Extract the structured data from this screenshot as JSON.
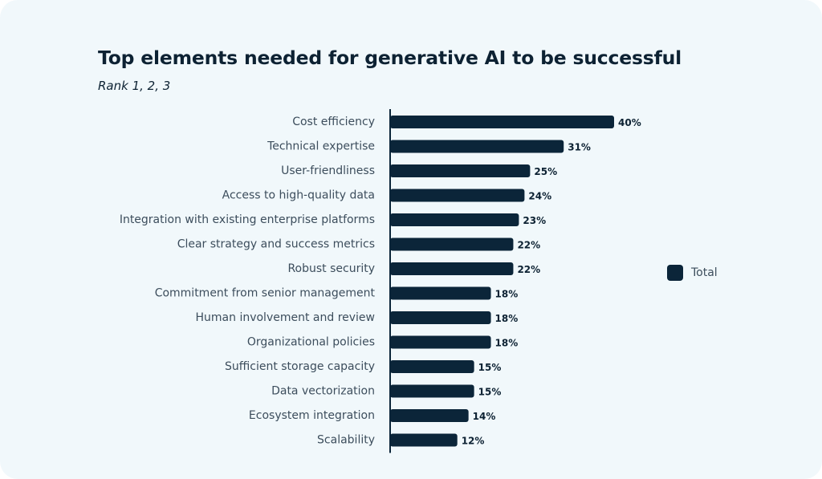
{
  "chart_data": {
    "type": "bar",
    "orientation": "horizontal",
    "title": "Top elements needed for generative AI to be successful",
    "subtitle": "Rank 1, 2, 3",
    "categories": [
      "Cost efficiency",
      "Technical expertise",
      "User-friendliness",
      "Access to high-quality data",
      "Integration with existing enterprise platforms",
      "Clear strategy and success metrics",
      "Robust security",
      "Commitment from senior management",
      "Human involvement and review",
      "Organizational policies",
      "Sufficient storage capacity",
      "Data vectorization",
      "Ecosystem integration",
      "Scalability"
    ],
    "series": [
      {
        "name": "Total",
        "values": [
          40,
          31,
          25,
          24,
          23,
          22,
          22,
          18,
          18,
          18,
          15,
          15,
          14,
          12
        ],
        "labels": [
          "40%",
          "31%",
          "25%",
          "24%",
          "23%",
          "22%",
          "22%",
          "18%",
          "18%",
          "18%",
          "15%",
          "15%",
          "14%",
          "12%"
        ]
      }
    ],
    "value_unit": "%",
    "xlim": [
      0,
      40
    ],
    "grid": false,
    "legend_position": "right",
    "colors": {
      "bar": "#0b2539",
      "background": "#f1f8fb",
      "axis": "#0b2539"
    }
  }
}
